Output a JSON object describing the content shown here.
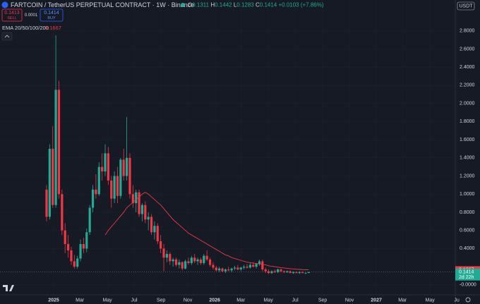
{
  "chart_data": {
    "type": "candlestick",
    "title": "FARTCOIN / TetherUS PERPETUAL CONTRACT · 1W · Binance",
    "ohlc_labels": [
      "O",
      "H",
      "L",
      "C"
    ],
    "change": "+0.0103 (+7.86%)",
    "sell": {
      "price": 0.1413,
      "label": "SELL"
    },
    "spread": 0.0001,
    "buy": {
      "price": 0.1414,
      "label": "BUY"
    },
    "currency": "USDT",
    "countdown": "2d 22h",
    "up_color": "#22ab94",
    "down_color": "#f23645",
    "open": [
      1.05,
      0.75,
      1.5,
      0.88,
      2.15,
      1.0,
      0.6,
      0.45,
      0.38,
      0.26,
      0.2,
      0.29,
      0.45,
      0.4,
      0.58,
      0.85,
      1.05,
      1.0,
      1.3,
      1.25,
      1.45,
      1.15,
      0.95,
      1.2,
      0.98,
      1.38,
      1.2,
      1.4,
      1.0,
      0.9,
      1.02,
      0.78,
      0.88,
      0.72,
      0.75,
      0.58,
      0.65,
      0.48,
      0.4,
      0.3,
      0.34,
      0.26,
      0.28,
      0.22,
      0.25,
      0.18,
      0.26,
      0.24,
      0.3,
      0.26,
      0.28,
      0.24,
      0.32,
      0.28,
      0.22,
      0.19,
      0.16,
      0.18,
      0.15,
      0.17,
      0.16,
      0.18,
      0.19,
      0.17,
      0.19,
      0.2,
      0.19,
      0.22,
      0.2,
      0.23,
      0.26,
      0.17,
      0.15,
      0.13,
      0.15,
      0.14,
      0.17,
      0.15,
      0.14,
      0.15,
      0.13,
      0.14,
      0.13,
      0.14,
      0.13,
      0.1311
    ],
    "high": [
      1.1,
      1.55,
      1.75,
      2.75,
      2.25,
      1.05,
      0.68,
      0.55,
      0.42,
      0.33,
      0.32,
      0.5,
      0.52,
      0.62,
      0.88,
      1.1,
      1.22,
      1.35,
      1.45,
      1.55,
      1.52,
      1.2,
      1.25,
      1.3,
      1.4,
      1.5,
      1.85,
      1.45,
      1.1,
      1.05,
      1.05,
      0.9,
      0.92,
      0.8,
      0.78,
      0.7,
      0.68,
      0.55,
      0.45,
      0.38,
      0.36,
      0.3,
      0.3,
      0.28,
      0.26,
      0.28,
      0.3,
      0.32,
      0.34,
      0.3,
      0.3,
      0.34,
      0.38,
      0.3,
      0.25,
      0.21,
      0.2,
      0.19,
      0.18,
      0.2,
      0.19,
      0.21,
      0.22,
      0.2,
      0.22,
      0.23,
      0.24,
      0.25,
      0.24,
      0.28,
      0.28,
      0.19,
      0.17,
      0.16,
      0.17,
      0.18,
      0.18,
      0.16,
      0.16,
      0.16,
      0.15,
      0.15,
      0.15,
      0.15,
      0.14,
      0.1442
    ],
    "low": [
      0.7,
      0.72,
      0.85,
      0.85,
      0.95,
      0.55,
      0.35,
      0.3,
      0.22,
      0.18,
      0.18,
      0.26,
      0.35,
      0.36,
      0.55,
      0.8,
      0.95,
      0.98,
      1.15,
      1.2,
      1.1,
      0.85,
      0.9,
      0.9,
      0.95,
      1.15,
      1.15,
      0.95,
      0.85,
      0.8,
      0.75,
      0.7,
      0.68,
      0.6,
      0.55,
      0.5,
      0.45,
      0.35,
      0.15,
      0.25,
      0.22,
      0.2,
      0.2,
      0.18,
      0.16,
      0.17,
      0.22,
      0.22,
      0.24,
      0.22,
      0.22,
      0.22,
      0.26,
      0.2,
      0.17,
      0.15,
      0.14,
      0.14,
      0.13,
      0.15,
      0.14,
      0.16,
      0.16,
      0.15,
      0.17,
      0.18,
      0.18,
      0.19,
      0.18,
      0.21,
      0.15,
      0.13,
      0.12,
      0.12,
      0.13,
      0.13,
      0.14,
      0.13,
      0.13,
      0.13,
      0.12,
      0.13,
      0.12,
      0.13,
      0.12,
      0.1283
    ],
    "close": [
      0.75,
      1.5,
      0.88,
      2.15,
      1.0,
      0.6,
      0.45,
      0.38,
      0.26,
      0.2,
      0.29,
      0.45,
      0.4,
      0.58,
      0.85,
      1.05,
      1.0,
      1.3,
      1.25,
      1.45,
      1.15,
      0.95,
      1.2,
      0.98,
      1.38,
      1.2,
      1.4,
      1.0,
      0.9,
      1.02,
      0.78,
      0.88,
      0.72,
      0.75,
      0.58,
      0.65,
      0.48,
      0.4,
      0.3,
      0.34,
      0.26,
      0.28,
      0.22,
      0.25,
      0.18,
      0.26,
      0.24,
      0.3,
      0.26,
      0.28,
      0.24,
      0.32,
      0.28,
      0.22,
      0.19,
      0.16,
      0.18,
      0.15,
      0.17,
      0.16,
      0.18,
      0.19,
      0.17,
      0.19,
      0.2,
      0.19,
      0.22,
      0.2,
      0.23,
      0.26,
      0.17,
      0.15,
      0.13,
      0.15,
      0.14,
      0.17,
      0.15,
      0.14,
      0.15,
      0.13,
      0.14,
      0.13,
      0.14,
      0.13,
      0.1311,
      0.1414
    ],
    "ema": {
      "name": "EMA 20/50/100/200",
      "color": "#f23645",
      "values": [
        null,
        null,
        null,
        null,
        null,
        null,
        null,
        null,
        null,
        null,
        null,
        null,
        null,
        null,
        null,
        null,
        null,
        null,
        null,
        0.55,
        0.6,
        0.64,
        0.68,
        0.72,
        0.76,
        0.8,
        0.85,
        0.88,
        0.91,
        0.94,
        0.97,
        1.0,
        1.02,
        1.0,
        0.97,
        0.94,
        0.91,
        0.88,
        0.84,
        0.8,
        0.76,
        0.72,
        0.69,
        0.66,
        0.63,
        0.6,
        0.57,
        0.55,
        0.53,
        0.51,
        0.49,
        0.47,
        0.45,
        0.43,
        0.41,
        0.39,
        0.37,
        0.35,
        0.33,
        0.32,
        0.3,
        0.29,
        0.28,
        0.27,
        0.26,
        0.25,
        0.245,
        0.24,
        0.235,
        0.23,
        0.225,
        0.22,
        0.21,
        0.205,
        0.2,
        0.195,
        0.19,
        0.186,
        0.182,
        0.178,
        0.175,
        0.172,
        0.17,
        0.168,
        0.167,
        0.1667
      ]
    },
    "xlim": [
      -15.1,
      133.2
    ],
    "xticks": [
      {
        "value": 2.3,
        "label": "2025"
      },
      {
        "value": 10.8,
        "label": "Mar"
      },
      {
        "value": 19.7,
        "label": "May"
      },
      {
        "value": 28.4,
        "label": "Jul"
      },
      {
        "value": 37.1,
        "label": "Sep"
      },
      {
        "value": 45.8,
        "label": "Nov"
      },
      {
        "value": 54.5,
        "label": "2026"
      },
      {
        "value": 63,
        "label": "Mar"
      },
      {
        "value": 71.9,
        "label": "May"
      },
      {
        "value": 80.6,
        "label": "Jul"
      },
      {
        "value": 89.5,
        "label": "Sep"
      },
      {
        "value": 98.2,
        "label": "Nov"
      },
      {
        "value": 106.9,
        "label": "2027"
      },
      {
        "value": 115.4,
        "label": "Mar"
      },
      {
        "value": 124.3,
        "label": "May"
      },
      {
        "value": 133,
        "label": "Ju"
      }
    ],
    "ylim": [
      -0.11,
      3.14
    ],
    "yticks": [
      {
        "value": 2.8,
        "label": "2.8000"
      },
      {
        "value": 2.6,
        "label": "2.6000"
      },
      {
        "value": 2.4,
        "label": "2.4000"
      },
      {
        "value": 2.2,
        "label": "2.2000"
      },
      {
        "value": 2,
        "label": "2.0000"
      },
      {
        "value": 1.8,
        "label": "1.8000"
      },
      {
        "value": 1.6,
        "label": "1.6000"
      },
      {
        "value": 1.4,
        "label": "1.4000"
      },
      {
        "value": 1.2,
        "label": "1.2000"
      },
      {
        "value": 1,
        "label": "1.0000"
      },
      {
        "value": 0.8,
        "label": "0.8000"
      },
      {
        "value": 0.6,
        "label": "0.6000"
      },
      {
        "value": 0.4,
        "label": "0.4000"
      },
      {
        "value": 0,
        "label": "-0.0000"
      }
    ],
    "grid": true
  }
}
